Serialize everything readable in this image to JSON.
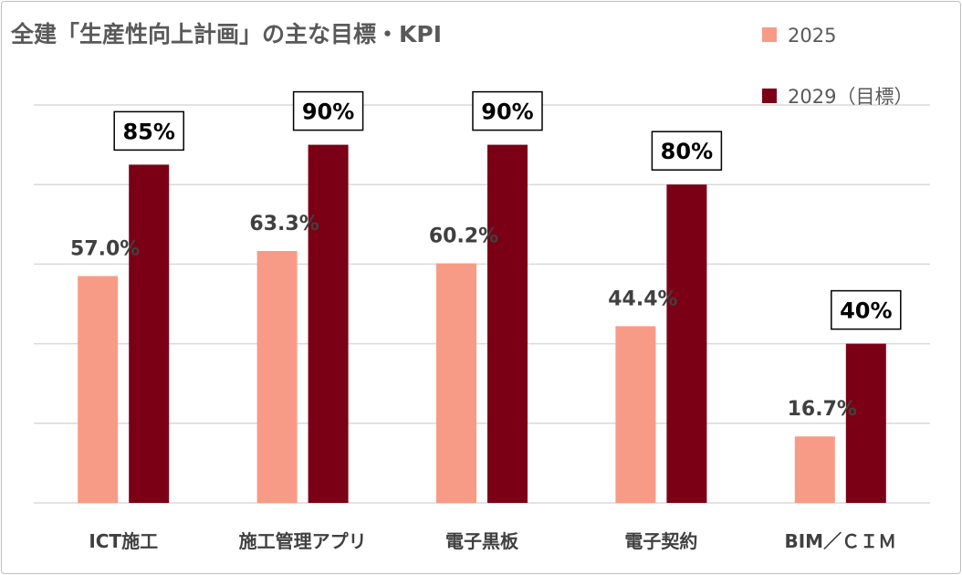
{
  "chart_data": {
    "type": "bar",
    "title": "全建「生産性向上計画」の主な目標・KPI",
    "categories": [
      "ICT施工",
      "施工管理アプリ",
      "電子黒板",
      "電子契約",
      "BIM／ＣＩＭ"
    ],
    "series": [
      {
        "name": "2025",
        "values": [
          57.0,
          63.3,
          60.2,
          44.4,
          16.7
        ],
        "labels": [
          "57.0%",
          "63.3%",
          "60.2%",
          "44.4%",
          "16.7%"
        ],
        "color": "#f79b87"
      },
      {
        "name": "2029（目標）",
        "values": [
          85,
          90,
          90,
          80,
          40
        ],
        "labels": [
          "85%",
          "90%",
          "90%",
          "80%",
          "40%"
        ],
        "color": "#7b0016"
      }
    ],
    "ylim": [
      0,
      100
    ],
    "grid": true,
    "legend_position": "top-right"
  }
}
